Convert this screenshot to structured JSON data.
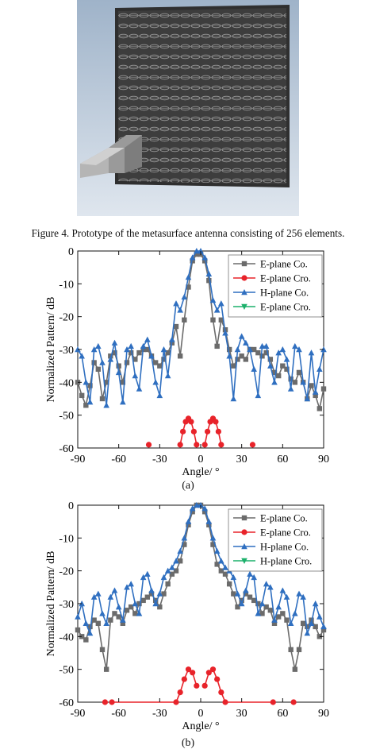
{
  "figure_caption": "Figure 4. Prototype of the metasurface antenna consisting of 256 elements.",
  "panels": [
    {
      "caption": "(a)"
    },
    {
      "caption": "(b)"
    }
  ],
  "chart_data": [
    {
      "type": "line",
      "xlabel": "Angle/ °",
      "ylabel": "Normalized Pattern/ dB",
      "xlim": [
        -90,
        90
      ],
      "ylim": [
        -60,
        0
      ],
      "xticks": [
        -90,
        -60,
        -30,
        0,
        30,
        60,
        90
      ],
      "yticks": [
        0,
        -10,
        -20,
        -30,
        -40,
        -50,
        -60
      ],
      "grid": false,
      "legend_position": "top-right",
      "series": [
        {
          "name": "E-plane Co.",
          "color": "#6b6b6b",
          "marker": "square",
          "x": [
            -90,
            -87,
            -84,
            -81,
            -78,
            -75,
            -72,
            -69,
            -66,
            -63,
            -60,
            -57,
            -54,
            -51,
            -48,
            -45,
            -42,
            -39,
            -36,
            -33,
            -30,
            -27,
            -24,
            -21,
            -18,
            -15,
            -12,
            -9,
            -6,
            -3,
            0,
            3,
            6,
            9,
            12,
            15,
            18,
            21,
            24,
            27,
            30,
            33,
            36,
            39,
            42,
            45,
            48,
            51,
            54,
            57,
            60,
            63,
            66,
            69,
            72,
            75,
            78,
            81,
            84,
            87,
            90
          ],
          "y": [
            -40,
            -44,
            -47,
            -41,
            -34,
            -36,
            -45,
            -40,
            -32,
            -31,
            -35,
            -40,
            -34,
            -31,
            -33,
            -31,
            -30,
            -30,
            -32,
            -34,
            -35,
            -33,
            -31,
            -28,
            -23,
            -32,
            -21,
            -11,
            -3,
            -1,
            -1,
            -3,
            -9,
            -21,
            -29,
            -21,
            -24,
            -30,
            -35,
            -33,
            -32,
            -33,
            -30,
            -30,
            -31,
            -32,
            -31,
            -33,
            -37,
            -38,
            -35,
            -36,
            -39,
            -40,
            -37,
            -40,
            -45,
            -41,
            -44,
            -48,
            -42
          ]
        },
        {
          "name": "E-plane Cro.",
          "color": "#e8232a",
          "marker": "circle",
          "x": [
            -38,
            -15,
            -13,
            -11,
            -9,
            -7,
            -5,
            -3,
            3,
            5,
            7,
            9,
            11,
            13,
            15,
            38
          ],
          "y": [
            -59,
            -59,
            -55,
            -52,
            -51,
            -52,
            -55,
            -59,
            -59,
            -55,
            -52,
            -51,
            -52,
            -55,
            -59,
            -59
          ]
        },
        {
          "name": "H-plane Co.",
          "color": "#2f6fc0",
          "marker": "triangle",
          "x": [
            -90,
            -87,
            -84,
            -81,
            -78,
            -75,
            -72,
            -69,
            -66,
            -63,
            -60,
            -57,
            -54,
            -51,
            -48,
            -45,
            -42,
            -39,
            -36,
            -33,
            -30,
            -27,
            -24,
            -21,
            -18,
            -15,
            -12,
            -9,
            -6,
            -3,
            0,
            3,
            6,
            9,
            12,
            15,
            18,
            21,
            24,
            27,
            30,
            33,
            36,
            39,
            42,
            45,
            48,
            51,
            54,
            57,
            60,
            63,
            66,
            69,
            72,
            75,
            78,
            81,
            84,
            87,
            90
          ],
          "y": [
            -30,
            -32,
            -40,
            -46,
            -30,
            -29,
            -34,
            -47,
            -33,
            -28,
            -37,
            -46,
            -30,
            -29,
            -38,
            -42,
            -29,
            -27,
            -32,
            -40,
            -44,
            -30,
            -38,
            -27,
            -16,
            -18,
            -14,
            -8,
            -2,
            0,
            0,
            -2,
            -7,
            -15,
            -18,
            -16,
            -25,
            -32,
            -45,
            -30,
            -26,
            -28,
            -30,
            -36,
            -44,
            -29,
            -29,
            -35,
            -40,
            -31,
            -30,
            -33,
            -42,
            -29,
            -30,
            -40,
            -45,
            -31,
            -43,
            -36,
            -30
          ]
        },
        {
          "name": "E-plane Cro.",
          "color": "#1cb06b",
          "marker": "triangle-down",
          "x": [],
          "y": []
        }
      ]
    },
    {
      "type": "line",
      "xlabel": "Angle/ °",
      "ylabel": "Normalized Pattern/ dB",
      "xlim": [
        -90,
        90
      ],
      "ylim": [
        -60,
        0
      ],
      "xticks": [
        -90,
        -60,
        -30,
        0,
        30,
        60,
        90
      ],
      "yticks": [
        0,
        -10,
        -20,
        -30,
        -40,
        -50,
        -60
      ],
      "grid": false,
      "legend_position": "top-right",
      "series": [
        {
          "name": "E-plane Co.",
          "color": "#6b6b6b",
          "marker": "square",
          "x": [
            -90,
            -87,
            -84,
            -81,
            -78,
            -75,
            -72,
            -69,
            -66,
            -63,
            -60,
            -57,
            -54,
            -51,
            -48,
            -45,
            -42,
            -39,
            -36,
            -33,
            -30,
            -27,
            -24,
            -21,
            -18,
            -15,
            -12,
            -9,
            -6,
            -3,
            0,
            3,
            6,
            9,
            12,
            15,
            18,
            21,
            24,
            27,
            30,
            33,
            36,
            39,
            42,
            45,
            48,
            51,
            54,
            57,
            60,
            63,
            66,
            69,
            72,
            75,
            78,
            81,
            84,
            87,
            90
          ],
          "y": [
            -38,
            -40,
            -41,
            -37,
            -35,
            -36,
            -44,
            -50,
            -35,
            -33,
            -34,
            -36,
            -32,
            -31,
            -33,
            -30,
            -29,
            -28,
            -27,
            -29,
            -31,
            -27,
            -24,
            -21,
            -20,
            -17,
            -12,
            -6,
            -2,
            0,
            0,
            -2,
            -6,
            -12,
            -18,
            -20,
            -21,
            -24,
            -27,
            -31,
            -29,
            -27,
            -28,
            -29,
            -30,
            -33,
            -31,
            -32,
            -36,
            -34,
            -33,
            -35,
            -44,
            -50,
            -44,
            -36,
            -37,
            -35,
            -37,
            -40,
            -38
          ]
        },
        {
          "name": "E-plane Cro.",
          "color": "#e8232a",
          "marker": "circle",
          "x": [
            -70,
            -65,
            -18,
            -15,
            -12,
            -9,
            -6,
            -3,
            3,
            6,
            9,
            12,
            15,
            18,
            53,
            68
          ],
          "y": [
            -60,
            -60,
            -60,
            -57,
            -53,
            -50,
            -51,
            -55,
            -55,
            -51,
            -50,
            -53,
            -57,
            -60,
            -60,
            -60
          ]
        },
        {
          "name": "H-plane Co.",
          "color": "#2f6fc0",
          "marker": "triangle",
          "x": [
            -90,
            -87,
            -84,
            -81,
            -78,
            -75,
            -72,
            -69,
            -66,
            -63,
            -60,
            -57,
            -54,
            -51,
            -48,
            -45,
            -42,
            -39,
            -36,
            -33,
            -30,
            -27,
            -24,
            -21,
            -18,
            -15,
            -12,
            -9,
            -6,
            -3,
            0,
            3,
            6,
            9,
            12,
            15,
            18,
            21,
            24,
            27,
            30,
            33,
            36,
            39,
            42,
            45,
            48,
            51,
            54,
            57,
            60,
            63,
            66,
            69,
            72,
            75,
            78,
            81,
            84,
            87,
            90
          ],
          "y": [
            -34,
            -30,
            -36,
            -39,
            -28,
            -27,
            -33,
            -36,
            -28,
            -26,
            -31,
            -35,
            -25,
            -24,
            -30,
            -33,
            -22,
            -21,
            -26,
            -30,
            -27,
            -22,
            -20,
            -19,
            -17,
            -14,
            -10,
            -5,
            -1,
            0,
            0,
            -1,
            -5,
            -10,
            -14,
            -17,
            -19,
            -20,
            -22,
            -27,
            -30,
            -26,
            -21,
            -22,
            -33,
            -30,
            -24,
            -25,
            -35,
            -31,
            -26,
            -28,
            -36,
            -33,
            -27,
            -28,
            -39,
            -36,
            -30,
            -34,
            -37
          ]
        },
        {
          "name": "H-plane Cro.",
          "color": "#1cb06b",
          "marker": "triangle-down",
          "x": [],
          "y": []
        }
      ]
    }
  ]
}
